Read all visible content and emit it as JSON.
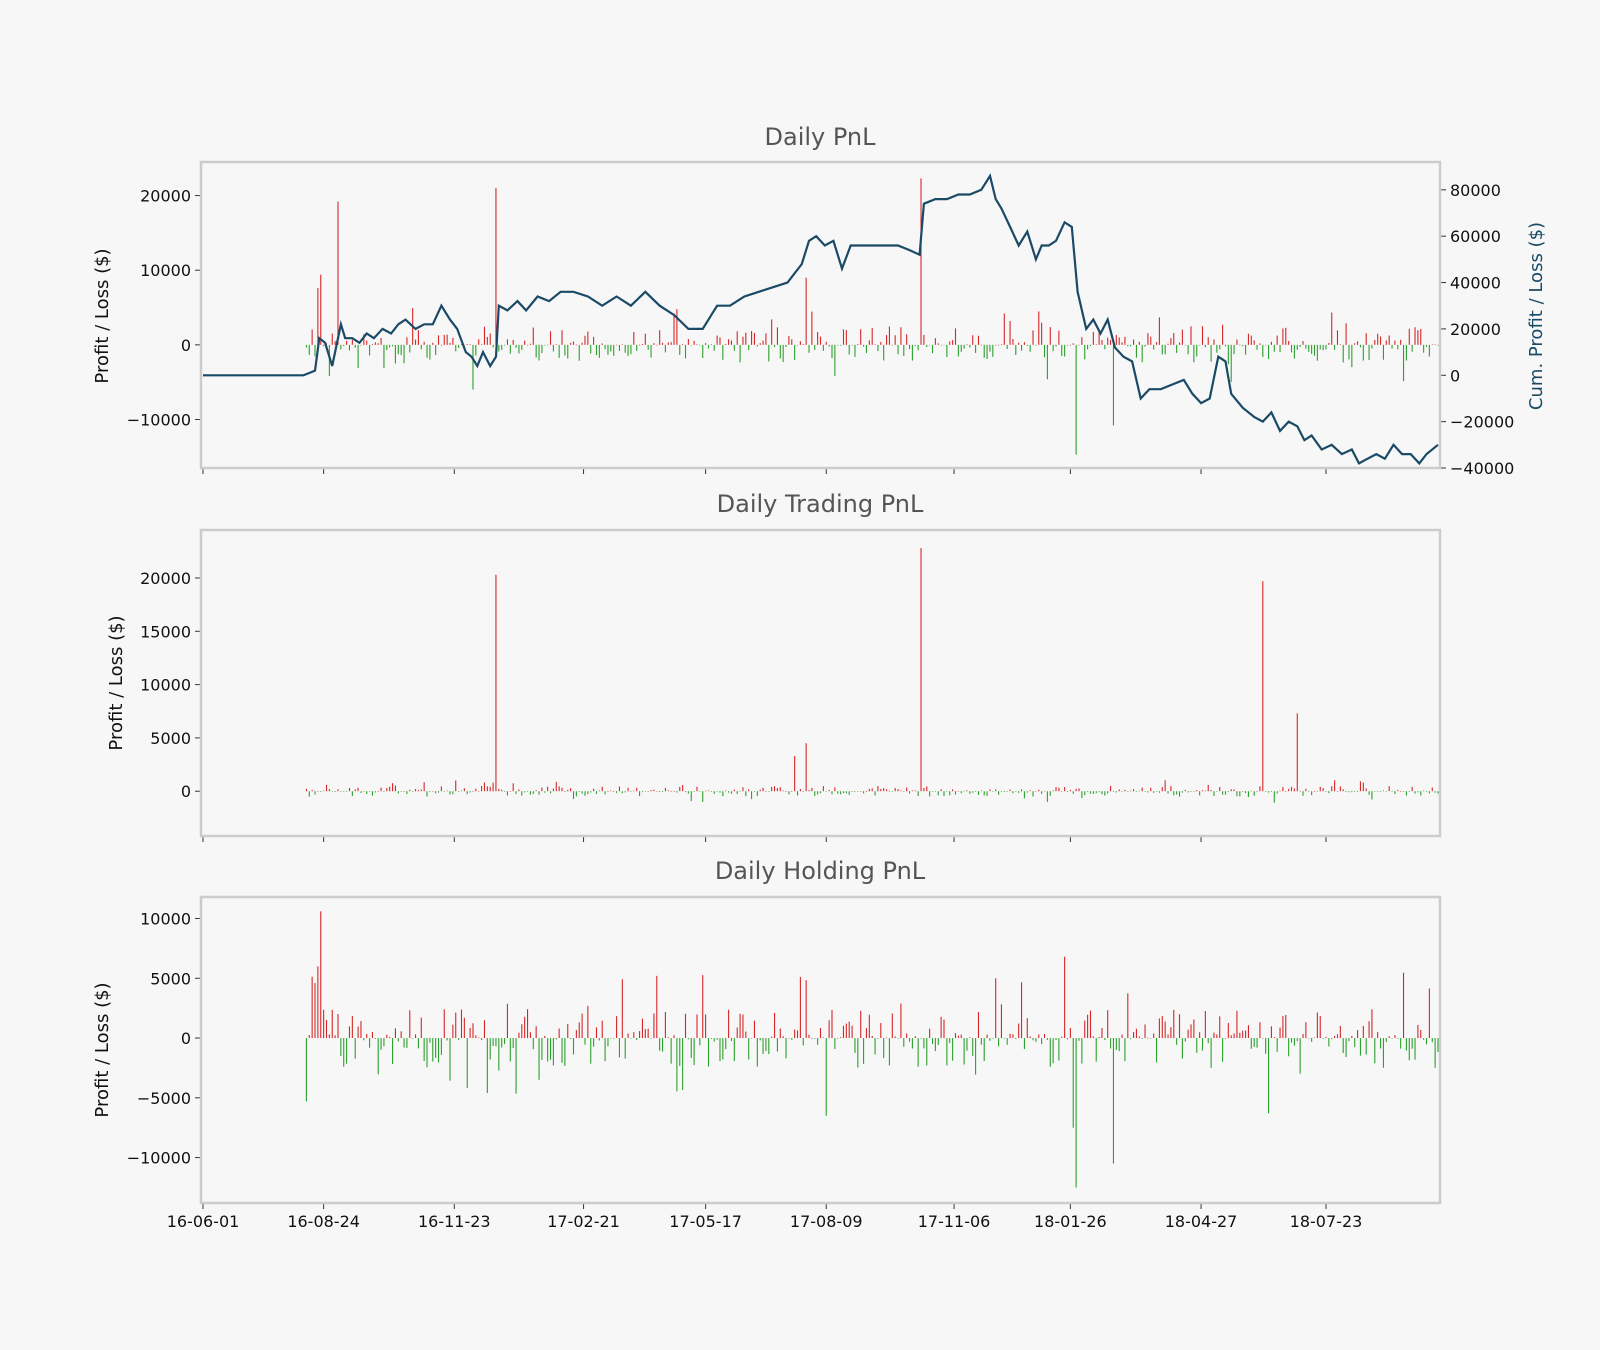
{
  "figure": {
    "background": "#f7f7f7",
    "colors": {
      "profit": "#d62728",
      "loss": "#2ca02c",
      "cumulative": "#1a4a66",
      "frame": "#cccccc",
      "title": "#555555"
    }
  },
  "chart_data": [
    {
      "type": "bar",
      "title": "Daily PnL",
      "ylabel": "Profit / Loss ($)",
      "ylim": [
        -16500,
        24500
      ],
      "yticks": [
        -10000,
        0,
        10000,
        20000
      ],
      "xlim": [
        "16-06-01",
        "18-10-09"
      ],
      "x_start": "16-08-12",
      "x_end": "18-10-09",
      "grid": false,
      "notable_bars": [
        {
          "x": "16-08-21",
          "value": 7600
        },
        {
          "x": "16-08-22",
          "value": 9400
        },
        {
          "x": "16-09-04",
          "value": 19200
        },
        {
          "x": "16-12-07",
          "value": -6000
        },
        {
          "x": "16-12-23",
          "value": 21000
        },
        {
          "x": "17-07-27",
          "value": 9000
        },
        {
          "x": "17-10-15",
          "value": 22300
        },
        {
          "x": "18-01-31",
          "value": -14700
        },
        {
          "x": "18-02-26",
          "value": -10800
        }
      ],
      "secondary_axis": {
        "ylabel": "Cum. Profit / Loss ($)",
        "ylim": [
          -40000,
          92000
        ],
        "yticks": [
          -40000,
          -20000,
          0,
          20000,
          40000,
          60000,
          80000
        ],
        "series": {
          "name": "",
          "x": [
            "16-06-01",
            "16-08-10",
            "16-08-14",
            "16-08-18",
            "16-08-21",
            "16-08-25",
            "16-08-30",
            "16-09-05",
            "16-09-08",
            "16-09-13",
            "16-09-18",
            "16-09-23",
            "16-09-28",
            "16-10-04",
            "16-10-10",
            "16-10-15",
            "16-10-20",
            "16-10-27",
            "16-11-02",
            "16-11-08",
            "16-11-14",
            "16-11-20",
            "16-11-25",
            "16-12-01",
            "16-12-05",
            "16-12-09",
            "16-12-13",
            "16-12-18",
            "16-12-22",
            "16-12-24",
            "16-12-30",
            "17-01-06",
            "17-01-12",
            "17-01-20",
            "17-01-28",
            "17-02-05",
            "17-02-14",
            "17-02-24",
            "17-03-06",
            "17-03-16",
            "17-03-26",
            "17-04-05",
            "17-04-15",
            "17-04-25",
            "17-05-05",
            "17-05-15",
            "17-05-25",
            "17-06-03",
            "17-06-13",
            "17-06-23",
            "17-07-03",
            "17-07-13",
            "17-07-23",
            "17-07-28",
            "17-08-02",
            "17-08-08",
            "17-08-14",
            "17-08-20",
            "17-08-26",
            "17-09-04",
            "17-09-12",
            "17-09-20",
            "17-09-28",
            "17-10-06",
            "17-10-13",
            "17-10-16",
            "17-10-24",
            "17-11-01",
            "17-11-09",
            "17-11-17",
            "17-11-25",
            "17-12-01",
            "17-12-05",
            "17-12-09",
            "17-12-15",
            "17-12-21",
            "17-12-27",
            "18-01-02",
            "18-01-06",
            "18-01-11",
            "18-01-16",
            "18-01-22",
            "18-01-27",
            "18-01-31",
            "18-02-06",
            "18-02-11",
            "18-02-16",
            "18-02-21",
            "18-02-26",
            "18-03-04",
            "18-03-10",
            "18-03-16",
            "18-03-22",
            "18-03-30",
            "18-04-07",
            "18-04-15",
            "18-04-21",
            "18-04-27",
            "18-05-03",
            "18-05-09",
            "18-05-14",
            "18-05-18",
            "18-05-26",
            "18-06-03",
            "18-06-09",
            "18-06-15",
            "18-06-21",
            "18-06-27",
            "18-07-03",
            "18-07-08",
            "18-07-13",
            "18-07-20",
            "18-07-27",
            "18-08-03",
            "18-08-10",
            "18-08-15",
            "18-08-21",
            "18-08-27",
            "18-09-02",
            "18-09-08",
            "18-09-14",
            "18-09-20",
            "18-09-26",
            "18-10-01",
            "18-10-09"
          ],
          "values": [
            0,
            0,
            1000,
            2000,
            16000,
            14000,
            4000,
            22000,
            16000,
            16000,
            14000,
            18000,
            16000,
            20000,
            18000,
            22000,
            24000,
            20000,
            22000,
            22000,
            30000,
            24000,
            20000,
            10000,
            8000,
            4000,
            10000,
            4000,
            8000,
            30000,
            28000,
            32000,
            28000,
            34000,
            32000,
            36000,
            36000,
            34000,
            30000,
            34000,
            30000,
            36000,
            30000,
            26000,
            20000,
            20000,
            30000,
            30000,
            34000,
            36000,
            38000,
            40000,
            48000,
            58000,
            60000,
            56000,
            58000,
            46000,
            56000,
            56000,
            56000,
            56000,
            56000,
            54000,
            52000,
            74000,
            76000,
            76000,
            78000,
            78000,
            80000,
            86000,
            76000,
            72000,
            64000,
            56000,
            62000,
            50000,
            56000,
            56000,
            58000,
            66000,
            64000,
            36000,
            20000,
            24000,
            18000,
            24000,
            12000,
            8000,
            6000,
            -10000,
            -6000,
            -6000,
            -4000,
            -2000,
            -8000,
            -12000,
            -10000,
            8000,
            6000,
            -8000,
            -14000,
            -18000,
            -20000,
            -16000,
            -24000,
            -20000,
            -22000,
            -28000,
            -26000,
            -32000,
            -30000,
            -34000,
            -32000,
            -38000,
            -36000,
            -34000,
            -36000,
            -30000,
            -34000,
            -34000,
            -38000,
            -34000,
            -30000
          ]
        }
      }
    },
    {
      "type": "bar",
      "title": "Daily Trading PnL",
      "ylabel": "Profit / Loss ($)",
      "ylim": [
        -4200,
        24500
      ],
      "yticks": [
        0,
        5000,
        10000,
        15000,
        20000
      ],
      "xlim": [
        "16-06-01",
        "18-10-09"
      ],
      "x_start": "16-08-12",
      "x_end": "18-10-09",
      "grid": false,
      "notable_bars": [
        {
          "x": "16-12-23",
          "value": 20300
        },
        {
          "x": "17-07-18",
          "value": 3300
        },
        {
          "x": "17-07-27",
          "value": 4500
        },
        {
          "x": "17-10-15",
          "value": 22800
        },
        {
          "x": "18-06-10",
          "value": 19700
        },
        {
          "x": "18-07-03",
          "value": 7300
        }
      ]
    },
    {
      "type": "bar",
      "title": "Daily Holding PnL",
      "ylabel": "Profit / Loss ($)",
      "ylim": [
        -13800,
        11800
      ],
      "yticks": [
        -10000,
        -5000,
        0,
        5000,
        10000
      ],
      "xlim": [
        "16-06-01",
        "18-10-09"
      ],
      "x_start": "16-08-12",
      "x_end": "18-10-09",
      "xticks": [
        "16-06-01",
        "16-08-24",
        "16-11-23",
        "17-02-21",
        "17-05-17",
        "17-08-09",
        "17-11-06",
        "18-01-26",
        "18-04-27",
        "18-07-23"
      ],
      "grid": false,
      "notable_bars": [
        {
          "x": "16-08-21",
          "value": 6000
        },
        {
          "x": "16-08-22",
          "value": 10600
        },
        {
          "x": "18-01-23",
          "value": 6800
        },
        {
          "x": "18-01-31",
          "value": -12500
        },
        {
          "x": "18-01-29",
          "value": -7500
        },
        {
          "x": "18-02-26",
          "value": -10500
        },
        {
          "x": "17-08-10",
          "value": -6500
        },
        {
          "x": "18-06-14",
          "value": -6300
        }
      ]
    }
  ]
}
